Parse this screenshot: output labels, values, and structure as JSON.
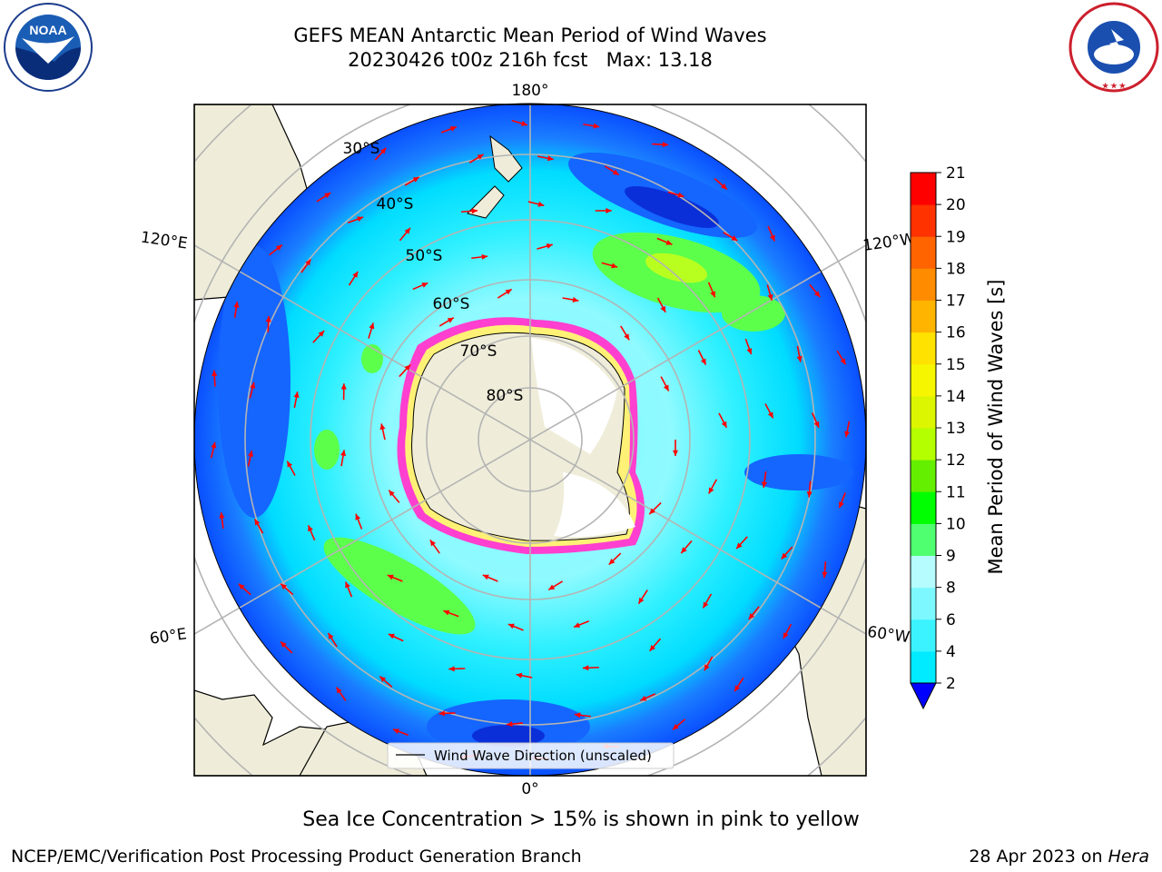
{
  "title": {
    "line1": "GEFS MEAN Antarctic Mean Period of Wind Waves",
    "line2": "20230426 t00z 216h fcst   Max: 13.18"
  },
  "map": {
    "projection": "south-polar-stereographic",
    "longitude_labels": {
      "top": "180°",
      "bottom": "0°",
      "upper_left": "120°E",
      "upper_right": "120°W",
      "lower_left": "60°E",
      "lower_right": "60°W"
    },
    "latitude_labels": [
      "30°S",
      "40°S",
      "50°S",
      "60°S",
      "70°S",
      "80°S"
    ],
    "legend": "Wind Wave Direction (unscaled)",
    "colors": {
      "land": "#efedd9",
      "ocean_low": "#0a58ff",
      "ocean_mid": "#00f0ff",
      "ocean_high": "#58ff20",
      "sea_ice_edge": "#ff33cc",
      "arrows": "#ff0000",
      "grid": "#b4b4b4"
    }
  },
  "colorbar": {
    "label": "Mean Period of Wind Waves [s]",
    "ticks": [
      "2",
      "4",
      "6",
      "8",
      "9",
      "10",
      "11",
      "12",
      "13",
      "14",
      "15",
      "16",
      "17",
      "18",
      "19",
      "20",
      "21"
    ],
    "colors": [
      "#0a5bff",
      "#00ebff",
      "#3af3ff",
      "#7df8ff",
      "#b6fcff",
      "#50ff70",
      "#00ff00",
      "#64ee00",
      "#b4ff00",
      "#dcf500",
      "#f6f600",
      "#ffe200",
      "#ffb400",
      "#ff8c00",
      "#ff6400",
      "#ff3200",
      "#ff0000"
    ],
    "extend_color": "#0000ff"
  },
  "notes": {
    "ice": "Sea Ice Concentration > 15% is shown in pink to yellow",
    "credit": "NCEP/EMC/Verification Post Processing Product Generation Branch",
    "date_prefix": "28 Apr 2023 on ",
    "date_host": "Hera"
  },
  "logos": {
    "left": "NOAA",
    "right": "NATIONAL WEATHER SERVICE"
  }
}
